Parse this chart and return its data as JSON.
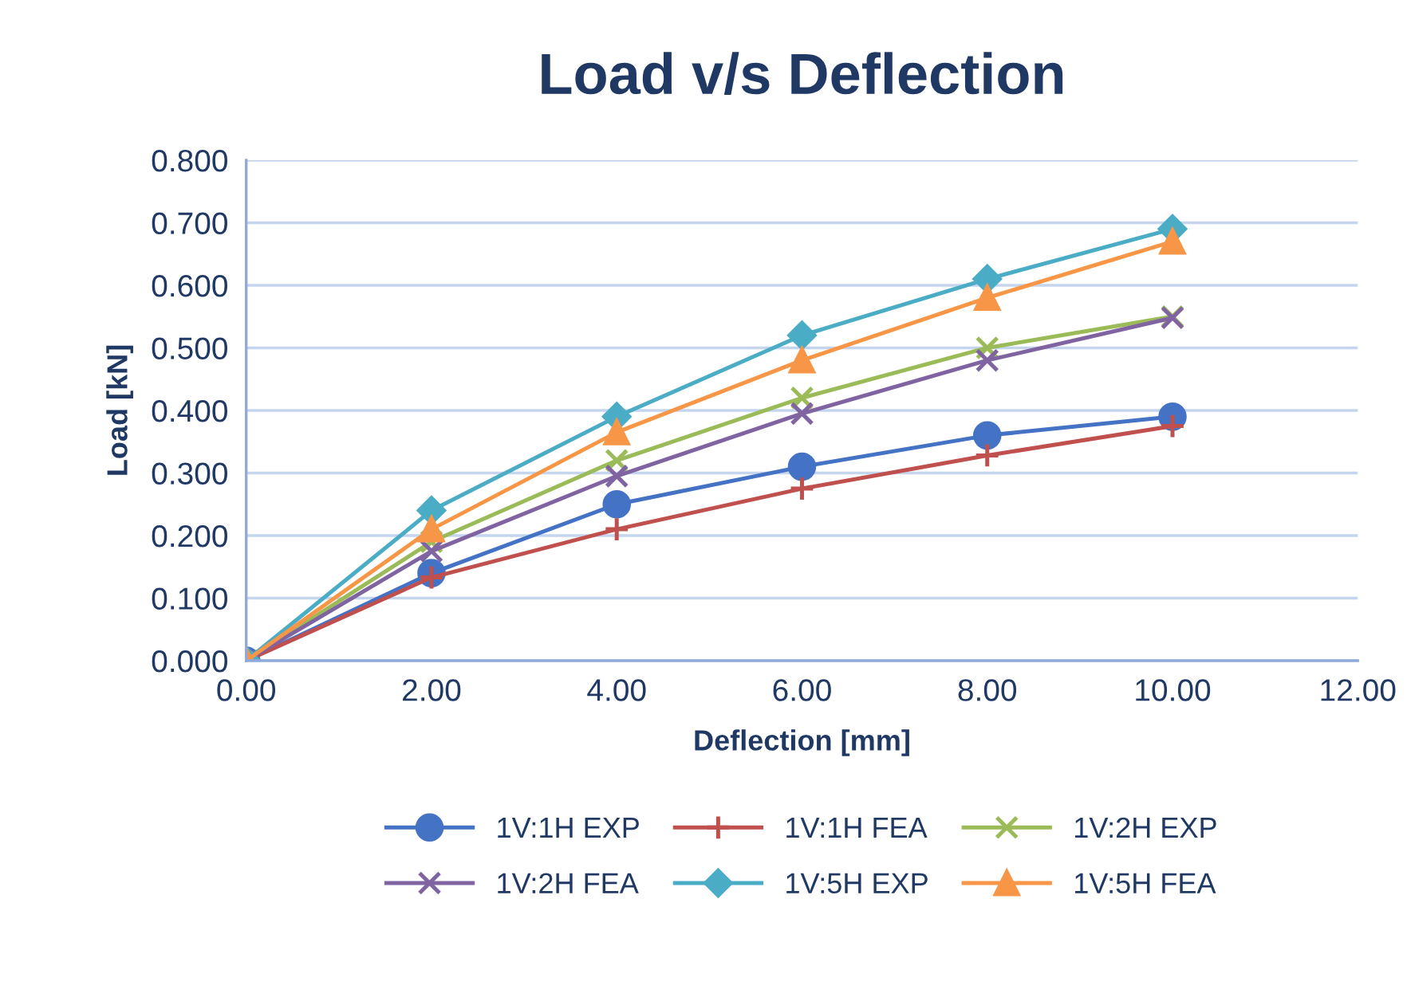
{
  "chart_data": {
    "type": "line",
    "title": "Load v/s Deflection",
    "xlabel": "Deflection [mm]",
    "ylabel": "Load [kN]",
    "x": [
      0,
      2,
      4,
      6,
      8,
      10
    ],
    "series": [
      {
        "name": "1V:1H EXP",
        "color": "#4472c4",
        "marker": "circle",
        "values": [
          0,
          0.14,
          0.25,
          0.31,
          0.36,
          0.39
        ]
      },
      {
        "name": "1V:1H FEA",
        "color": "#c0504d",
        "marker": "plus",
        "values": [
          0,
          0.133,
          0.21,
          0.275,
          0.328,
          0.375
        ]
      },
      {
        "name": "1V:2H EXP",
        "color": "#9bbb59",
        "marker": "cross",
        "values": [
          0,
          0.19,
          0.32,
          0.42,
          0.5,
          0.55
        ]
      },
      {
        "name": "1V:2H FEA",
        "color": "#8064a2",
        "marker": "cross",
        "values": [
          0,
          0.175,
          0.295,
          0.395,
          0.48,
          0.548
        ]
      },
      {
        "name": "1V:5H EXP",
        "color": "#4bacc6",
        "marker": "diamond",
        "values": [
          0,
          0.24,
          0.39,
          0.52,
          0.61,
          0.69
        ]
      },
      {
        "name": "1V:5H FEA",
        "color": "#f79646",
        "marker": "triangle",
        "values": [
          0,
          0.21,
          0.365,
          0.48,
          0.58,
          0.67
        ]
      }
    ],
    "xlim": [
      0,
      12
    ],
    "xticks": [
      {
        "value": 0,
        "label": "0.00"
      },
      {
        "value": 2,
        "label": "2.00"
      },
      {
        "value": 4,
        "label": "4.00"
      },
      {
        "value": 6,
        "label": "6.00"
      },
      {
        "value": 8,
        "label": "8.00"
      },
      {
        "value": 10,
        "label": "10.00"
      },
      {
        "value": 12,
        "label": "12.00"
      }
    ],
    "ylim": [
      0,
      0.8
    ],
    "yticks": [
      {
        "value": 0,
        "label": "0.000"
      },
      {
        "value": 0.1,
        "label": "0.100"
      },
      {
        "value": 0.2,
        "label": "0.200"
      },
      {
        "value": 0.3,
        "label": "0.300"
      },
      {
        "value": 0.4,
        "label": "0.400"
      },
      {
        "value": 0.5,
        "label": "0.500"
      },
      {
        "value": 0.6,
        "label": "0.600"
      },
      {
        "value": 0.7,
        "label": "0.700"
      },
      {
        "value": 0.8,
        "label": "0.800"
      }
    ],
    "grid": "y",
    "legend": "bottom",
    "line_style": "solid"
  }
}
